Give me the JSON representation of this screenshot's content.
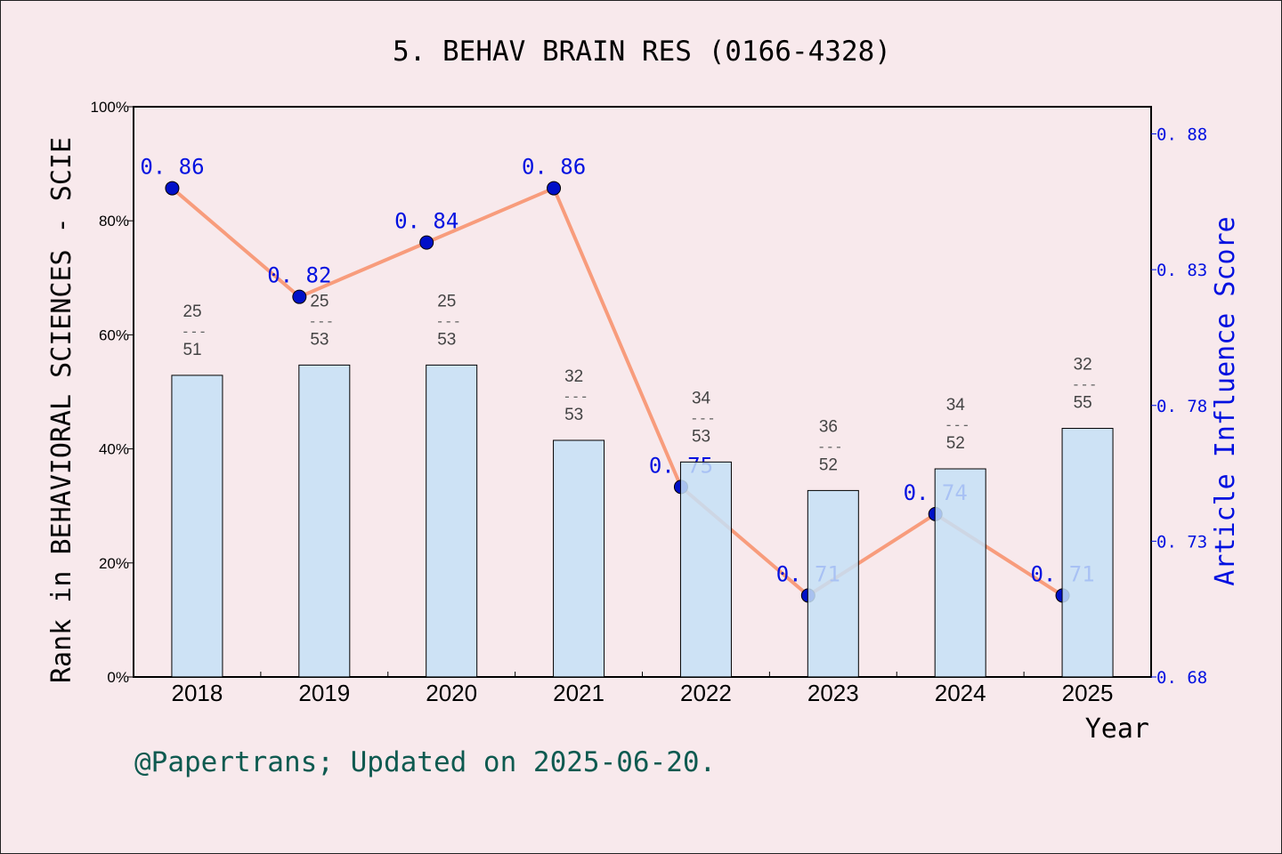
{
  "chart_data": {
    "type": "bar+line",
    "title": "5. BEHAV BRAIN RES (0166-4328)",
    "xlabel": "Year",
    "ylabel_left": "Rank in BEHAVIORAL SCIENCES - SCIE",
    "ylabel_right": "Article Influence Score",
    "categories": [
      "2018",
      "2019",
      "2020",
      "2021",
      "2022",
      "2023",
      "2024",
      "2025"
    ],
    "left_axis": {
      "ylim": [
        0,
        100
      ],
      "ticks": [
        "0%",
        "20%",
        "40%",
        "60%",
        "80%",
        "100%"
      ]
    },
    "right_axis": {
      "ylim": [
        0.68,
        0.89
      ],
      "ticks": [
        "0.68",
        "0.73",
        "0.78",
        "0.83",
        "0.88"
      ]
    },
    "bars": {
      "ranks": [
        25,
        25,
        25,
        32,
        34,
        36,
        34,
        32
      ],
      "totals": [
        51,
        53,
        53,
        53,
        53,
        52,
        52,
        55
      ],
      "values_percent": [
        52.9,
        54.7,
        54.7,
        41.5,
        37.7,
        32.7,
        36.5,
        43.6
      ],
      "color": "#c5e0f7"
    },
    "line": {
      "values": [
        0.86,
        0.82,
        0.84,
        0.86,
        0.75,
        0.71,
        0.74,
        0.71
      ],
      "labels": [
        "0.86",
        "0.82",
        "0.84",
        "0.86",
        "0.75",
        "0.71",
        "0.74",
        "0.71"
      ],
      "line_color": "#f89c7c",
      "marker_color": "#0010c8",
      "label_color": "#0010e0"
    },
    "grid": false,
    "footer": "@Papertrans; Updated on 2025-06-20.",
    "footer_color": "#0e5a50"
  }
}
